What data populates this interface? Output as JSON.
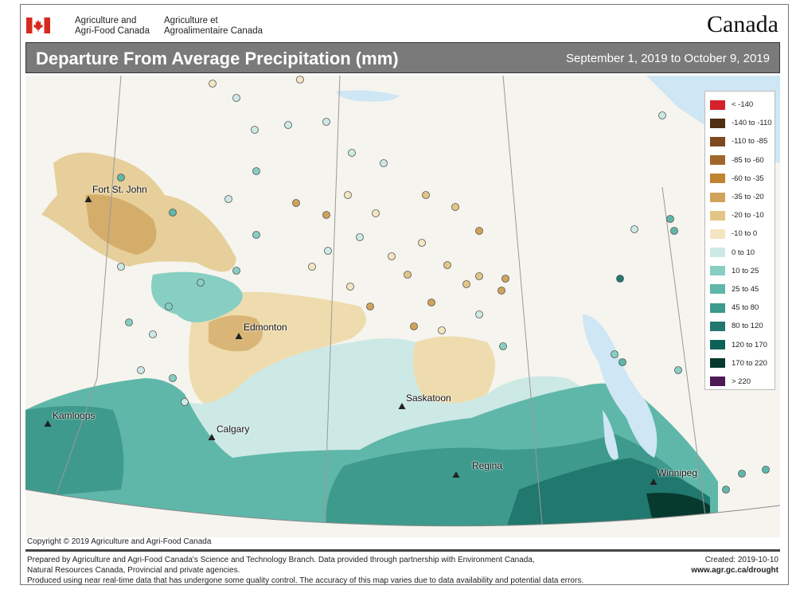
{
  "header": {
    "dept_en": [
      "Agriculture and",
      "Agri-Food Canada"
    ],
    "dept_fr": [
      "Agriculture et",
      "Agroalimentaire Canada"
    ],
    "wordmark": "Canada",
    "title": "Departure From Average Precipitation (mm)",
    "date_range": "September 1, 2019 to October 9, 2019"
  },
  "legend": [
    {
      "label": "< -140",
      "color": "#d6202a"
    },
    {
      "label": "-140 to -110",
      "color": "#4f2e12"
    },
    {
      "label": "-110 to -85",
      "color": "#7d4a20"
    },
    {
      "label": "-85 to -60",
      "color": "#a0662a"
    },
    {
      "label": "-60 to -35",
      "color": "#c08332"
    },
    {
      "label": "-35 to -20",
      "color": "#d1a35a"
    },
    {
      "label": "-20 to -10",
      "color": "#e2c686"
    },
    {
      "label": "-10 to 0",
      "color": "#f4e6c2"
    },
    {
      "label": "0 to 10",
      "color": "#cde9e5"
    },
    {
      "label": "10 to 25",
      "color": "#86cfc2"
    },
    {
      "label": "25 to 45",
      "color": "#5fb7a9"
    },
    {
      "label": "45 to 80",
      "color": "#3e9a8c"
    },
    {
      "label": "80 to 120",
      "color": "#20786e"
    },
    {
      "label": "120 to 170",
      "color": "#0c6256"
    },
    {
      "label": "170 to 220",
      "color": "#073a2e"
    },
    {
      "label": "> 220",
      "color": "#4d1a55"
    }
  ],
  "cities": {
    "fort_st_john": "Fort St. John",
    "edmonton": "Edmonton",
    "saskatoon": "Saskatoon",
    "kamloops": "Kamloops",
    "calgary": "Calgary",
    "regina": "Regina",
    "winnipeg": "Winnipeg"
  },
  "footer": {
    "copyright": "Copyright © 2019 Agriculture and Agri-Food Canada",
    "line1": "Prepared by Agriculture and Agri-Food Canada's Science and Technology Branch. Data provided through partnership with Environment Canada,",
    "line2": "Natural Resources Canada, Provincial and private agencies.",
    "line3": "Produced using near real-time data that has undergone some quality control. The accuracy of this map varies due to data availability and potential data errors.",
    "created": "Created: 2019-10-10",
    "website": "www.agr.gc.ca/drought"
  }
}
